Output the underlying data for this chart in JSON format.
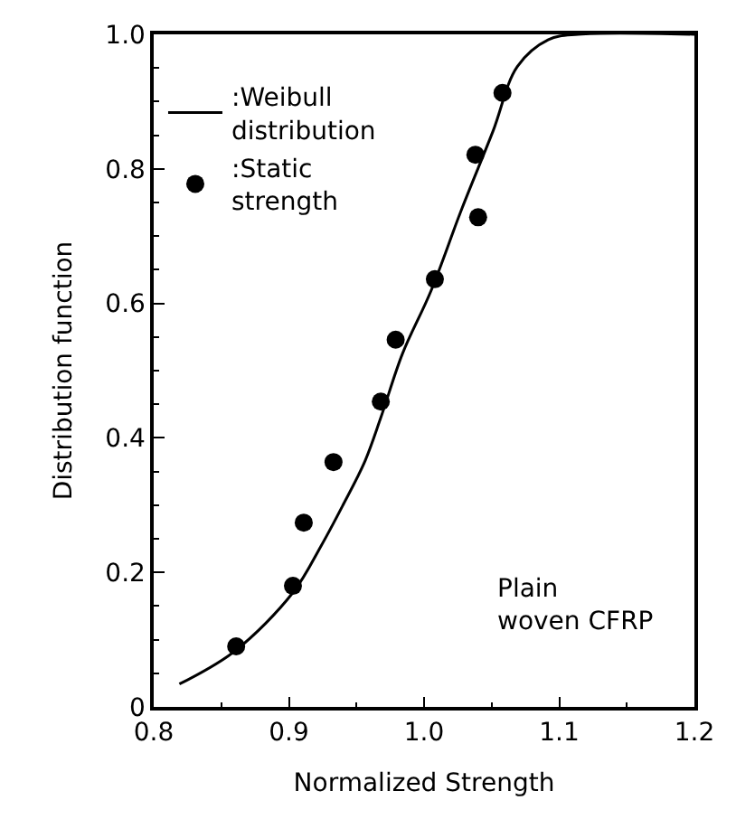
{
  "chart_data": {
    "type": "scatter",
    "xlabel": "Normalized Strength",
    "ylabel": "Distribution function",
    "xlim": [
      0.8,
      1.2
    ],
    "xticks": [
      {
        "value": 0.8,
        "label": "0.8"
      },
      {
        "value": 0.9,
        "label": "0.9"
      },
      {
        "value": 1.0,
        "label": "1.0"
      },
      {
        "value": 1.1,
        "label": "1.1"
      },
      {
        "value": 1.2,
        "label": "1.2"
      }
    ],
    "ylim": [
      0,
      1.0
    ],
    "yticks": [
      0,
      0.2,
      0.4,
      0.6,
      0.8,
      {
        "value": 1.0,
        "label": "1.0"
      }
    ],
    "legend": "top left",
    "series": [
      {
        "name": ":Weibull distribution",
        "type": "line",
        "color": "#000000",
        "marker": "none",
        "line_style": "solid",
        "x": [
          0.819,
          0.86,
          0.903,
          0.924,
          0.94,
          0.956,
          0.968,
          0.984,
          1.005,
          1.028,
          1.051,
          1.069,
          1.092,
          1.114,
          1.2
        ],
        "values": [
          0.034,
          0.083,
          0.17,
          0.24,
          0.3,
          0.364,
          0.43,
          0.525,
          0.618,
          0.741,
          0.856,
          0.952,
          0.992,
          1.0,
          1.0
        ]
      },
      {
        "name": ":Static strength",
        "color": "#000000",
        "marker": "circle",
        "x": [
          0.861,
          0.903,
          0.911,
          0.933,
          0.968,
          0.979,
          1.008,
          1.04,
          1.038,
          1.058
        ],
        "values": [
          0.09,
          0.18,
          0.274,
          0.364,
          0.454,
          0.546,
          0.636,
          0.728,
          0.821,
          0.913
        ]
      }
    ],
    "annotations": [
      "Plain woven CFRP"
    ]
  }
}
